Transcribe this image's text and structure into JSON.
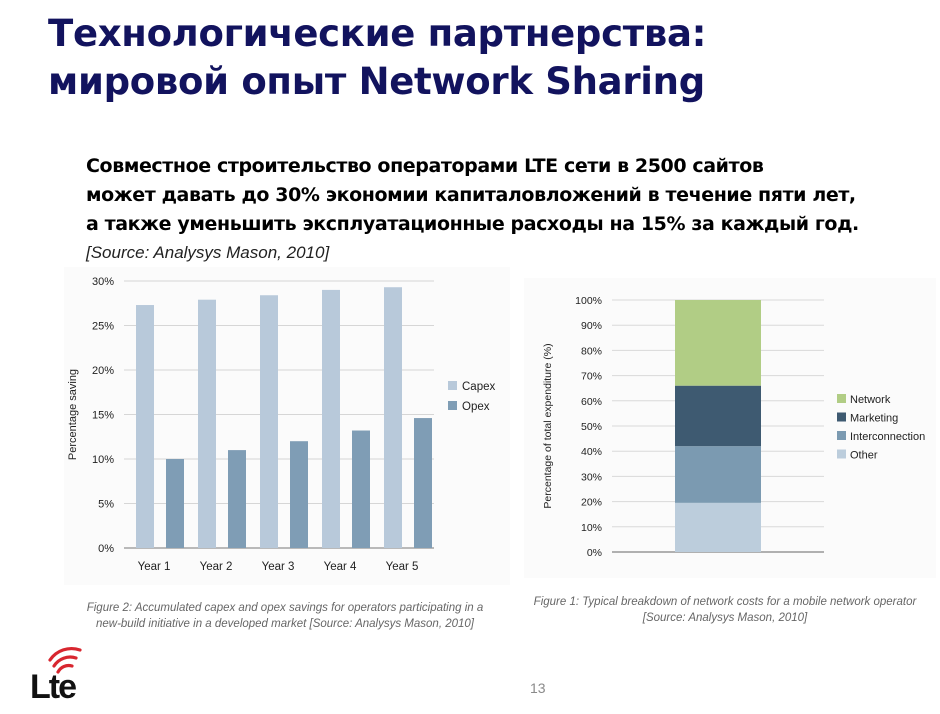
{
  "slide": {
    "title_lines": [
      "Технологические партнерства:",
      "мировой опыт Network Sharing"
    ],
    "lead_lines": [
      "Совместное строительство операторами  LTE сети в 2500 сайтов",
      "может давать до 30% экономии капиталовложений в течение пяти лет,",
      "а также уменьшить эксплуатационные расходы на 15% за каждый год."
    ],
    "source": "[Source: Analysys Mason, 2010]",
    "page_number": "13",
    "logo_text": "Lte",
    "logo_colors": {
      "arcs": "#d8262f",
      "text": "#111111"
    }
  },
  "chart_data": [
    {
      "type": "bar",
      "ylabel": "Percentage saving",
      "categories": [
        "Year 1",
        "Year 2",
        "Year 3",
        "Year 4",
        "Year 5"
      ],
      "series": [
        {
          "name": "Capex",
          "color": "#b8c9da",
          "values": [
            27.3,
            27.9,
            28.4,
            29.0,
            29.3
          ]
        },
        {
          "name": "Opex",
          "color": "#7f9db5",
          "values": [
            10.0,
            11.0,
            12.0,
            13.2,
            14.6
          ]
        }
      ],
      "ylim": [
        0,
        30
      ],
      "yticks": [
        "0%",
        "5%",
        "10%",
        "15%",
        "20%",
        "25%",
        "30%"
      ],
      "grid": true,
      "legend": "right",
      "caption_lines": [
        "Figure 2: Accumulated capex and opex savings for operators participating in a",
        "new-build initiative in a developed market [Source: Analysys Mason, 2010]"
      ]
    },
    {
      "type": "bar",
      "stacked": true,
      "ylabel": "Percentage of total expenditure (%)",
      "categories": [
        ""
      ],
      "series": [
        {
          "name": "Other",
          "color": "#bccddc",
          "values": [
            19.5
          ]
        },
        {
          "name": "Interconnection",
          "color": "#7b9ab1",
          "values": [
            22.5
          ]
        },
        {
          "name": "Marketing",
          "color": "#3e5a71",
          "values": [
            24
          ]
        },
        {
          "name": "Network",
          "color": "#b1cd85",
          "values": [
            34
          ]
        }
      ],
      "legend_order": [
        "Network",
        "Marketing",
        "Interconnection",
        "Other"
      ],
      "ylim": [
        0,
        100
      ],
      "yticks": [
        "0%",
        "10%",
        "20%",
        "30%",
        "40%",
        "50%",
        "60%",
        "70%",
        "80%",
        "90%",
        "100%"
      ],
      "grid": true,
      "legend": "right",
      "caption_lines": [
        "Figure 1: Typical breakdown of network costs for a mobile network operator",
        "[Source: Analysys Mason, 2010]"
      ]
    }
  ]
}
